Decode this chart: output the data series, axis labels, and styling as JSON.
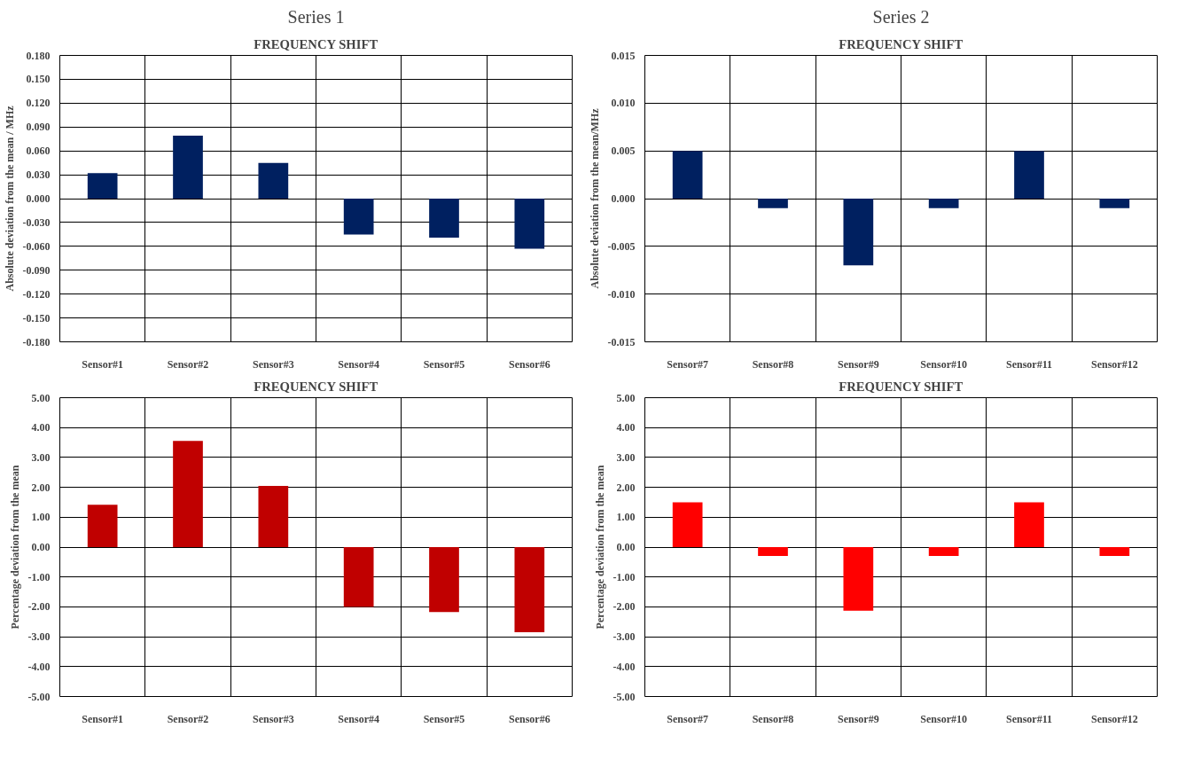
{
  "chart_data": [
    {
      "type": "bar",
      "annotations": [
        "Series 1"
      ],
      "title": "FREQUENCY SHIFT",
      "ylabel": "Absolute deviation from the mean / MHz",
      "categories": [
        "Sensor#1",
        "Sensor#2",
        "Sensor#3",
        "Sensor#4",
        "Sensor#5",
        "Sensor#6"
      ],
      "values": [
        0.032,
        0.079,
        0.045,
        -0.045,
        -0.049,
        -0.063
      ],
      "color": "#002060",
      "ylim": [
        -0.18,
        0.18
      ],
      "yticks": [
        {
          "value": -0.18,
          "label": "-0.180"
        },
        {
          "value": -0.15,
          "label": "-0.150"
        },
        {
          "value": -0.12,
          "label": "-0.120"
        },
        {
          "value": -0.09,
          "label": "-0.090"
        },
        {
          "value": -0.06,
          "label": "-0.060"
        },
        {
          "value": -0.03,
          "label": "-0.030"
        },
        {
          "value": 0,
          "label": "0.000"
        },
        {
          "value": 0.03,
          "label": "0.030"
        },
        {
          "value": 0.06,
          "label": "0.060"
        },
        {
          "value": 0.09,
          "label": "0.090"
        },
        {
          "value": 0.12,
          "label": "0.120"
        },
        {
          "value": 0.15,
          "label": "0.150"
        },
        {
          "value": 0.18,
          "label": "0.180"
        }
      ],
      "grid": true
    },
    {
      "type": "bar",
      "annotations": [
        "Series 2"
      ],
      "title": "FREQUENCY SHIFT",
      "ylabel": "Absolute deviation from the mean/MHz",
      "categories": [
        "Sensor#7",
        "Sensor#8",
        "Sensor#9",
        "Sensor#10",
        "Sensor#11",
        "Sensor#12"
      ],
      "values": [
        0.005,
        -0.001,
        -0.007,
        -0.001,
        0.005,
        -0.001
      ],
      "color": "#002060",
      "ylim": [
        -0.015,
        0.015
      ],
      "yticks": [
        {
          "value": -0.015,
          "label": "-0.015"
        },
        {
          "value": -0.01,
          "label": "-0.010"
        },
        {
          "value": -0.005,
          "label": "-0.005"
        },
        {
          "value": 0,
          "label": "0.000"
        },
        {
          "value": 0.005,
          "label": "0.005"
        },
        {
          "value": 0.01,
          "label": "0.010"
        },
        {
          "value": 0.015,
          "label": "0.015"
        }
      ],
      "grid": true
    },
    {
      "type": "bar",
      "title": "FREQUENCY SHIFT",
      "ylabel": "Percentage deviation from the mean",
      "categories": [
        "Sensor#1",
        "Sensor#2",
        "Sensor#3",
        "Sensor#4",
        "Sensor#5",
        "Sensor#6"
      ],
      "values": [
        1.42,
        3.55,
        2.05,
        -2.0,
        -2.17,
        -2.85
      ],
      "color": "#c00000",
      "ylim": [
        -5,
        5
      ],
      "yticks": [
        {
          "value": -5,
          "label": "-5.00"
        },
        {
          "value": -4,
          "label": "-4.00"
        },
        {
          "value": -3,
          "label": "-3.00"
        },
        {
          "value": -2,
          "label": "-2.00"
        },
        {
          "value": -1,
          "label": "-1.00"
        },
        {
          "value": 0,
          "label": "0.00"
        },
        {
          "value": 1,
          "label": "1.00"
        },
        {
          "value": 2,
          "label": "2.00"
        },
        {
          "value": 3,
          "label": "3.00"
        },
        {
          "value": 4,
          "label": "4.00"
        },
        {
          "value": 5,
          "label": "5.00"
        }
      ],
      "grid": true
    },
    {
      "type": "bar",
      "title": "FREQUENCY SHIFT",
      "ylabel": "Percentage deviation from the mean",
      "categories": [
        "Sensor#7",
        "Sensor#8",
        "Sensor#9",
        "Sensor#10",
        "Sensor#11",
        "Sensor#12"
      ],
      "values": [
        1.5,
        -0.3,
        -2.13,
        -0.3,
        1.5,
        -0.3
      ],
      "color": "#ff0000",
      "ylim": [
        -5,
        5
      ],
      "yticks": [
        {
          "value": -5,
          "label": "-5.00"
        },
        {
          "value": -4,
          "label": "-4.00"
        },
        {
          "value": -3,
          "label": "-3.00"
        },
        {
          "value": -2,
          "label": "-2.00"
        },
        {
          "value": -1,
          "label": "-1.00"
        },
        {
          "value": 0,
          "label": "0.00"
        },
        {
          "value": 1,
          "label": "1.00"
        },
        {
          "value": 2,
          "label": "2.00"
        },
        {
          "value": 3,
          "label": "3.00"
        },
        {
          "value": 4,
          "label": "4.00"
        },
        {
          "value": 5,
          "label": "5.00"
        }
      ],
      "grid": true
    }
  ]
}
